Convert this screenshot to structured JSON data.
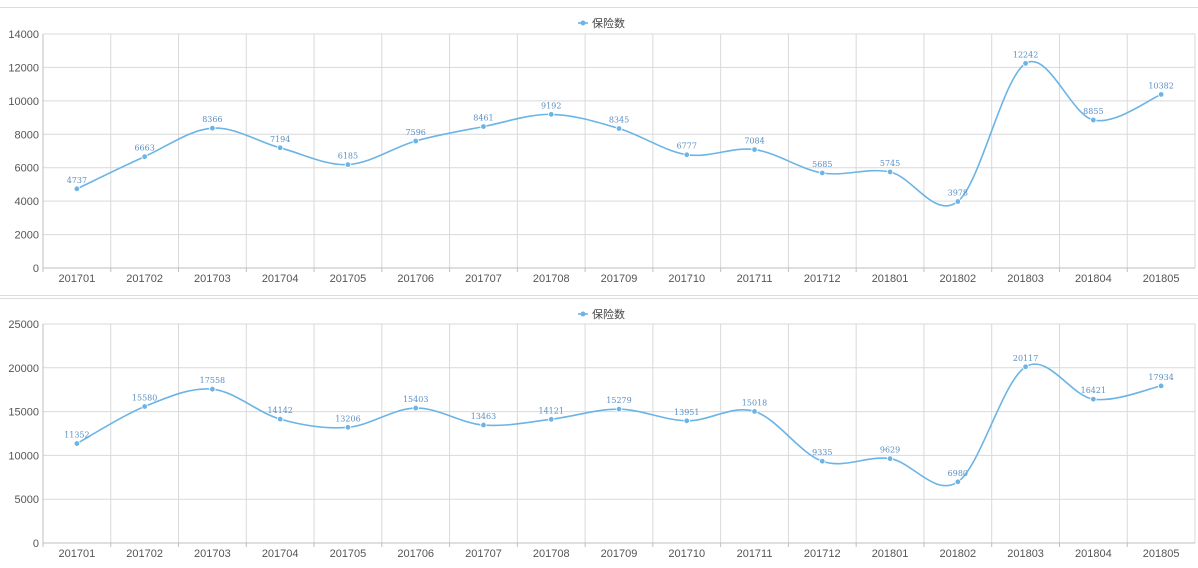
{
  "chart_data": [
    {
      "type": "line",
      "title": "",
      "xlabel": "",
      "ylabel": "",
      "ylim": [
        0,
        14000
      ],
      "yticks": [
        0,
        2000,
        4000,
        6000,
        8000,
        10000,
        12000,
        14000
      ],
      "legend_position": "top-center",
      "grid": true,
      "categories": [
        "201701",
        "201702",
        "201703",
        "201704",
        "201705",
        "201706",
        "201707",
        "201708",
        "201709",
        "201710",
        "201711",
        "201712",
        "201801",
        "201802",
        "201803",
        "201804",
        "201805"
      ],
      "series": [
        {
          "name": "保险数",
          "color": "#6ab4e6",
          "values": [
            4737,
            6663,
            8366,
            7194,
            6185,
            7596,
            8461,
            9192,
            8345,
            6777,
            7084,
            5685,
            5745,
            3978,
            12242,
            8855,
            10382
          ]
        }
      ]
    },
    {
      "type": "line",
      "title": "",
      "xlabel": "",
      "ylabel": "",
      "ylim": [
        0,
        25000
      ],
      "yticks": [
        0,
        5000,
        10000,
        15000,
        20000,
        25000
      ],
      "legend_position": "top-center",
      "grid": true,
      "categories": [
        "201701",
        "201702",
        "201703",
        "201704",
        "201705",
        "201706",
        "201707",
        "201708",
        "201709",
        "201710",
        "201711",
        "201712",
        "201801",
        "201802",
        "201803",
        "201804",
        "201805"
      ],
      "series": [
        {
          "name": "保险数",
          "color": "#6ab4e6",
          "values": [
            11352,
            15580,
            17558,
            14142,
            13206,
            15403,
            13463,
            14121,
            15279,
            13951,
            15018,
            9335,
            9629,
            6980,
            20117,
            16421,
            17934
          ]
        }
      ]
    }
  ]
}
